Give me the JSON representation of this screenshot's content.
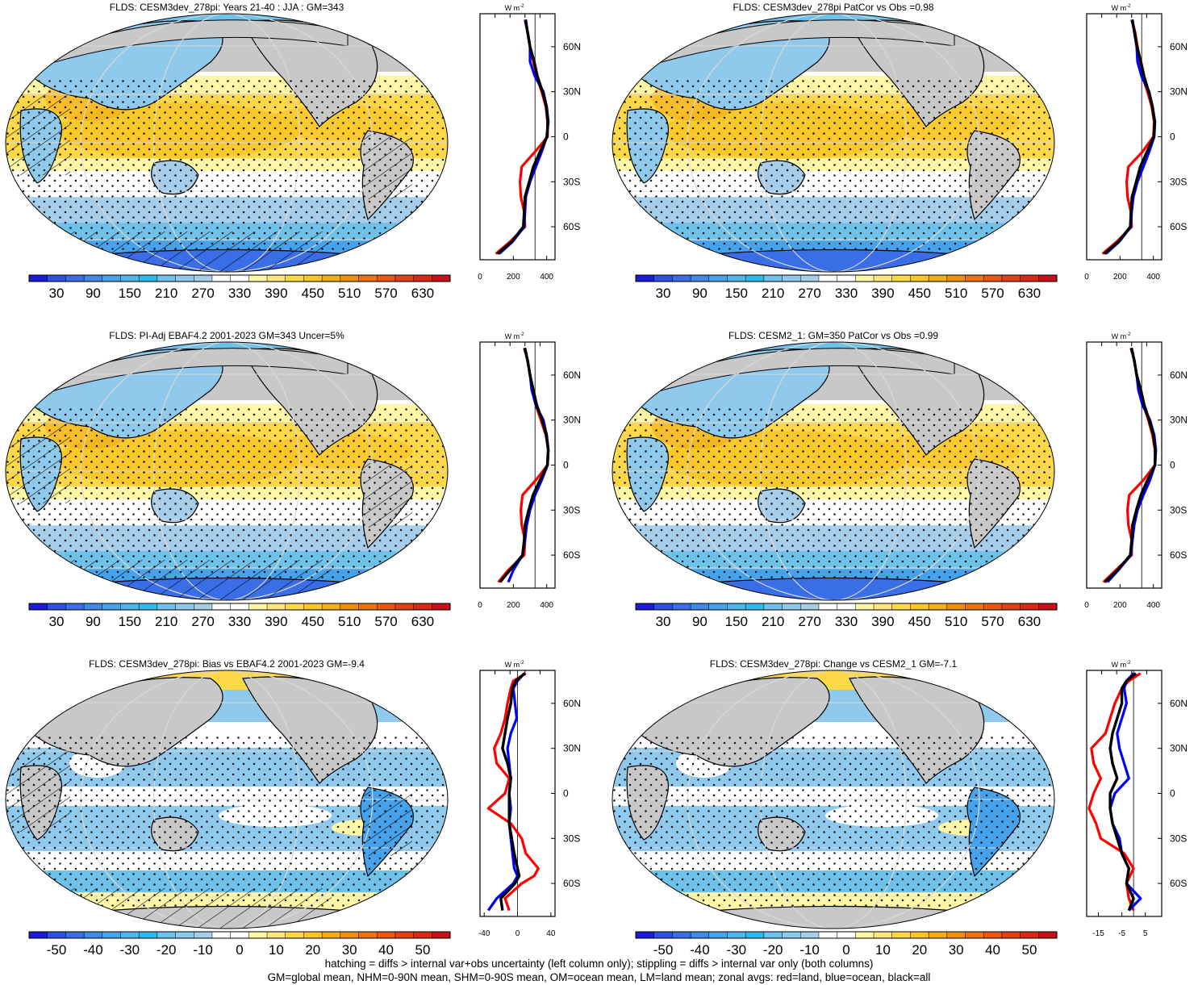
{
  "colors": {
    "land": "#c8c8c8",
    "grid": "#d9d9d9",
    "coast": "#000000",
    "stipple": "#000000",
    "profile_land": "#ff0000",
    "profile_ocean": "#0000ff",
    "profile_all": "#000000"
  },
  "colorbars": {
    "absolute": {
      "labels": [
        "30",
        "90",
        "150",
        "210",
        "270",
        "330",
        "390",
        "450",
        "510",
        "570",
        "630"
      ],
      "colors": [
        "#1b1bd8",
        "#2f4fe0",
        "#3a6ee6",
        "#3f8ae8",
        "#46a2ea",
        "#4fb6ec",
        "#2fb8ee",
        "#6ec2ea",
        "#8fc9ec",
        "#a6cdea",
        "#ffffff",
        "#ffffff",
        "#fff6a6",
        "#ffe680",
        "#ffd84a",
        "#f8c524",
        "#f2ac18",
        "#f09010",
        "#ec7410",
        "#e85812",
        "#e23e14",
        "#d82818",
        "#c8101a"
      ]
    },
    "diff": {
      "labels": [
        "-50",
        "-40",
        "-30",
        "-20",
        "-10",
        "0",
        "10",
        "20",
        "30",
        "40",
        "50"
      ],
      "colors": [
        "#1b1bd8",
        "#2f4fe0",
        "#3a6ee6",
        "#3f8ae8",
        "#46a2ea",
        "#4fb6ec",
        "#2fb8ee",
        "#6ec2ea",
        "#8fc9ec",
        "#a6cdea",
        "#ffffff",
        "#ffffff",
        "#fff6a6",
        "#ffe680",
        "#ffd84a",
        "#f8c524",
        "#f2ac18",
        "#f09010",
        "#ec7410",
        "#e85812",
        "#e23e14",
        "#d82818",
        "#c8101a"
      ]
    }
  },
  "panels": [
    {
      "title": "FLDS: CESM3dev_278pi: Years 21-40 : JJA : GM=343",
      "kind": "absolute",
      "hatched": true,
      "profile": {
        "unit_base": "W m",
        "unit_exp": "-2",
        "xticks": [
          "0",
          "200",
          "400"
        ],
        "xtick_values": [
          0,
          200,
          400
        ],
        "xlim": [
          0,
          450
        ],
        "ref_line": 330,
        "lat_labels": [
          "60N",
          "30N",
          "0",
          "30S",
          "60S"
        ],
        "latitudes": [
          78,
          70,
          60,
          50,
          40,
          30,
          20,
          10,
          0,
          -10,
          -20,
          -30,
          -40,
          -50,
          -60,
          -70,
          -78
        ],
        "land": [
          270,
          285,
          300,
          320,
          340,
          370,
          395,
          405,
          405,
          330,
          250,
          240,
          245,
          265,
          270,
          180,
          95
        ],
        "ocean": [
          275,
          285,
          300,
          300,
          330,
          380,
          400,
          410,
          400,
          370,
          335,
          300,
          275,
          270,
          265,
          195,
          115
        ],
        "all": [
          272,
          285,
          300,
          325,
          345,
          375,
          398,
          407,
          402,
          360,
          320,
          295,
          270,
          265,
          260,
          190,
          105
        ]
      }
    },
    {
      "title": "FLDS: CESM3dev_278pi PatCor vs Obs =0.98",
      "kind": "absolute",
      "hatched": false,
      "profile": {
        "unit_base": "W m",
        "unit_exp": "-2",
        "xticks": [
          "0",
          "200",
          "400"
        ],
        "xtick_values": [
          0,
          200,
          400
        ],
        "xlim": [
          0,
          450
        ],
        "ref_line": 330,
        "lat_labels": [
          "60N",
          "30N",
          "0",
          "30S",
          "60S"
        ],
        "latitudes": [
          78,
          70,
          60,
          50,
          40,
          30,
          20,
          10,
          0,
          -10,
          -20,
          -30,
          -40,
          -50,
          -60,
          -70,
          -78
        ],
        "land": [
          270,
          290,
          305,
          320,
          335,
          365,
          390,
          405,
          400,
          335,
          250,
          240,
          245,
          265,
          270,
          180,
          95
        ],
        "ocean": [
          275,
          285,
          300,
          305,
          330,
          375,
          395,
          410,
          405,
          375,
          340,
          305,
          280,
          270,
          265,
          195,
          115
        ],
        "all": [
          272,
          287,
          302,
          325,
          345,
          372,
          395,
          407,
          403,
          362,
          322,
          297,
          272,
          266,
          262,
          190,
          105
        ]
      }
    },
    {
      "title": "FLDS: PI-Adj EBAF4.2 2001-2023 GM=343 Uncer=5%",
      "kind": "absolute",
      "hatched": true,
      "profile": {
        "unit_base": "W m",
        "unit_exp": "-2",
        "xticks": [
          "0",
          "200",
          "400"
        ],
        "xtick_values": [
          0,
          200,
          400
        ],
        "xlim": [
          0,
          450
        ],
        "ref_line": 330,
        "lat_labels": [
          "60N",
          "30N",
          "0",
          "30S",
          "60S"
        ],
        "latitudes": [
          78,
          70,
          60,
          50,
          40,
          30,
          20,
          10,
          0,
          -10,
          -20,
          -30,
          -40,
          -50,
          -60,
          -70,
          -78
        ],
        "land": [
          265,
          285,
          300,
          315,
          335,
          365,
          395,
          410,
          405,
          335,
          255,
          245,
          250,
          270,
          265,
          170,
          110
        ],
        "ocean": [
          270,
          285,
          300,
          310,
          335,
          380,
          400,
          410,
          405,
          370,
          330,
          300,
          280,
          270,
          255,
          200,
          170
        ],
        "all": [
          268,
          285,
          300,
          320,
          340,
          372,
          398,
          409,
          404,
          360,
          318,
          292,
          270,
          265,
          255,
          180,
          120
        ]
      }
    },
    {
      "title": "FLDS: CESM2_1: GM=350 PatCor vs Obs =0.99",
      "kind": "absolute",
      "hatched": false,
      "profile": {
        "unit_base": "W m",
        "unit_exp": "-2",
        "xticks": [
          "0",
          "200",
          "400"
        ],
        "xtick_values": [
          0,
          200,
          400
        ],
        "xlim": [
          0,
          450
        ],
        "ref_line": 330,
        "lat_labels": [
          "60N",
          "30N",
          "0",
          "30S",
          "60S"
        ],
        "latitudes": [
          78,
          70,
          60,
          50,
          40,
          30,
          20,
          10,
          0,
          -10,
          -20,
          -30,
          -40,
          -50,
          -60,
          -70,
          -78
        ],
        "land": [
          265,
          285,
          300,
          320,
          340,
          370,
          395,
          410,
          410,
          340,
          255,
          245,
          250,
          270,
          270,
          175,
          100
        ],
        "ocean": [
          270,
          285,
          300,
          310,
          335,
          380,
          405,
          415,
          410,
          380,
          340,
          305,
          285,
          275,
          265,
          190,
          125
        ],
        "all": [
          268,
          285,
          300,
          325,
          345,
          375,
          400,
          412,
          410,
          365,
          325,
          298,
          275,
          270,
          262,
          185,
          110
        ]
      }
    },
    {
      "title": "FLDS: CESM3dev_278pi: Bias vs EBAF4.2 2001-2023 GM=-9.4",
      "kind": "diff",
      "hatched": true,
      "profile": {
        "unit_base": "W m",
        "unit_exp": "-2",
        "xticks": [
          "-40",
          "0",
          "40"
        ],
        "xtick_values": [
          -40,
          0,
          40
        ],
        "xlim": [
          -45,
          45
        ],
        "ref_line": 0,
        "lat_labels": [
          "60N",
          "30N",
          "0",
          "30S",
          "60S"
        ],
        "latitudes": [
          80,
          75,
          70,
          60,
          50,
          40,
          30,
          20,
          10,
          0,
          -10,
          -20,
          -30,
          -40,
          -50,
          -55,
          -60,
          -70,
          -78
        ],
        "land": [
          10,
          -5,
          -8,
          -12,
          -15,
          -20,
          -28,
          -25,
          -10,
          -15,
          -35,
          -8,
          5,
          10,
          25,
          20,
          5,
          -15,
          -10
        ],
        "ocean": [
          8,
          0,
          -5,
          -3,
          -1,
          -8,
          -12,
          -10,
          -8,
          -10,
          -8,
          -10,
          -8,
          -6,
          -4,
          0,
          -5,
          -25,
          -35
        ],
        "all": [
          9,
          -2,
          -6,
          -8,
          -12,
          -15,
          -18,
          -12,
          -8,
          -10,
          -10,
          -10,
          -7,
          -4,
          0,
          2,
          -3,
          -20,
          -18
        ]
      }
    },
    {
      "title": "FLDS: CESM3dev_278pi: Change vs CESM2_1 GM=-7.1",
      "kind": "diff",
      "hatched": false,
      "profile": {
        "unit_base": "W m",
        "unit_exp": "-2",
        "xticks": [
          "-15",
          "-5",
          "5"
        ],
        "xtick_values": [
          -15,
          -5,
          5
        ],
        "xlim": [
          -20,
          12
        ],
        "ref_line": 0,
        "lat_labels": [
          "60N",
          "30N",
          "0",
          "30S",
          "60S"
        ],
        "latitudes": [
          80,
          75,
          70,
          60,
          50,
          40,
          30,
          20,
          10,
          0,
          -10,
          -20,
          -30,
          -40,
          -50,
          -60,
          -70,
          -78
        ],
        "land": [
          3,
          -2,
          -5,
          -8,
          -10,
          -12,
          -18,
          -17,
          -14,
          -17,
          -19,
          -16,
          -14,
          -4,
          0,
          -3,
          -2,
          0
        ],
        "ocean": [
          0,
          -3,
          -4,
          -3,
          -5,
          -7,
          -6,
          -4,
          -2,
          -8,
          -10,
          -9,
          -6,
          -5,
          -2,
          -3,
          3,
          -2
        ],
        "all": [
          1,
          -3,
          -5,
          -5,
          -7,
          -9,
          -10,
          -9,
          -7,
          -10,
          -10,
          -9,
          -7,
          -5,
          -2,
          -3,
          0,
          -2
        ]
      }
    }
  ],
  "footer": {
    "line1": "hatching = diffs > internal var+obs uncertainty (left column only); stippling = diffs > internal var only (both columns)",
    "line2": "GM=global mean, NHM=0-90N mean, SHM=0-90S mean, OM=ocean mean, LM=land mean; zonal avgs: red=land, blue=ocean, black=all"
  }
}
